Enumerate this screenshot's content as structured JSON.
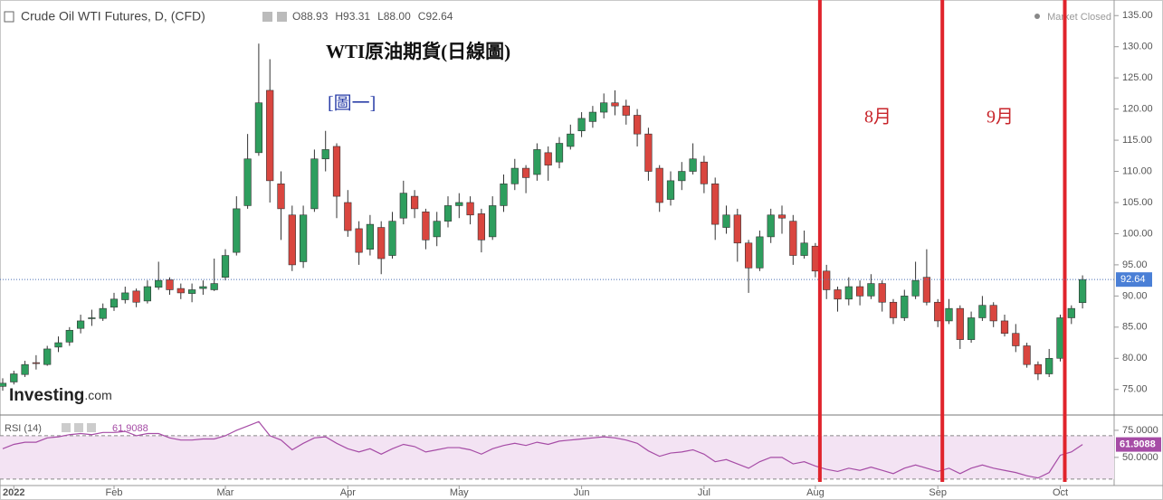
{
  "chart_data": {
    "type": "candlestick",
    "title": "Crude Oil WTI Futures, D, (CFD)",
    "header_values": [
      "O88.93",
      "H93.31",
      "L88.00",
      "C92.64"
    ],
    "status": "Market Closed",
    "logo_parts": [
      "Investing",
      ".com"
    ],
    "annotations": [
      {
        "text": "WTI原油期貨(日線圖)",
        "color": "#111111"
      },
      {
        "text": "[圖一]",
        "color": "#2b3fa8"
      },
      {
        "text": "8月",
        "color": "#c8252b"
      },
      {
        "text": "9月",
        "color": "#c8252b"
      }
    ],
    "up_color": "#2e9e5e",
    "down_color": "#d9463f",
    "ylim": [
      70.9,
      137.5
    ],
    "yticks": [
      {
        "value": 75,
        "label": "75.00"
      },
      {
        "value": 80,
        "label": "80.00"
      },
      {
        "value": 85,
        "label": "85.00"
      },
      {
        "value": 90,
        "label": "90.00"
      },
      {
        "value": 95,
        "label": "95.00"
      },
      {
        "value": 100,
        "label": "100.00"
      },
      {
        "value": 105,
        "label": "105.00"
      },
      {
        "value": 110,
        "label": "110.00"
      },
      {
        "value": 115,
        "label": "115.00"
      },
      {
        "value": 120,
        "label": "120.00"
      },
      {
        "value": 125,
        "label": "125.00"
      },
      {
        "value": 130,
        "label": "130.00"
      },
      {
        "value": 135,
        "label": "135.00"
      }
    ],
    "x_labels": [
      {
        "value": 1,
        "label": "2022"
      },
      {
        "value": 10,
        "label": "Feb"
      },
      {
        "value": 20,
        "label": "Mar"
      },
      {
        "value": 31,
        "label": "Apr"
      },
      {
        "value": 41,
        "label": "May"
      },
      {
        "value": 52,
        "label": "Jun"
      },
      {
        "value": 63,
        "label": "Jul"
      },
      {
        "value": 73,
        "label": "Aug"
      },
      {
        "value": 84,
        "label": "Sep"
      },
      {
        "value": 95,
        "label": "Oct"
      }
    ],
    "ohlc": [
      [
        75.5,
        76.8,
        74.8,
        76.0
      ],
      [
        76.2,
        78.0,
        75.8,
        77.5
      ],
      [
        77.4,
        79.6,
        77.0,
        79.0
      ],
      [
        79.3,
        80.5,
        78.2,
        79.2
      ],
      [
        79.0,
        82.0,
        78.8,
        81.5
      ],
      [
        81.8,
        83.5,
        81.0,
        82.5
      ],
      [
        82.6,
        85.0,
        82.0,
        84.5
      ],
      [
        84.8,
        87.0,
        84.0,
        86.0
      ],
      [
        86.5,
        87.8,
        85.2,
        86.5
      ],
      [
        86.4,
        88.8,
        86.0,
        88.0
      ],
      [
        88.2,
        90.5,
        87.6,
        89.5
      ],
      [
        89.4,
        91.5,
        88.8,
        90.5
      ],
      [
        90.8,
        91.2,
        88.2,
        89.0
      ],
      [
        89.2,
        92.5,
        88.8,
        91.5
      ],
      [
        91.4,
        95.5,
        91.0,
        92.5
      ],
      [
        92.6,
        93.0,
        90.2,
        91.0
      ],
      [
        91.2,
        92.0,
        89.5,
        90.5
      ],
      [
        90.4,
        92.0,
        89.0,
        91.0
      ],
      [
        91.2,
        92.5,
        90.2,
        91.5
      ],
      [
        91.0,
        96.0,
        90.8,
        92.0
      ],
      [
        93.0,
        97.5,
        92.5,
        96.5
      ],
      [
        97.0,
        106.0,
        96.5,
        104.0
      ],
      [
        104.5,
        116.0,
        104.0,
        112.0
      ],
      [
        113.0,
        130.5,
        112.5,
        121.0
      ],
      [
        123.0,
        128.0,
        105.0,
        108.5
      ],
      [
        108.0,
        110.0,
        99.0,
        104.0
      ],
      [
        103.0,
        104.5,
        94.0,
        95.0
      ],
      [
        95.5,
        104.5,
        94.5,
        103.0
      ],
      [
        104.0,
        113.5,
        103.5,
        112.0
      ],
      [
        112.0,
        116.5,
        110.0,
        113.5
      ],
      [
        114.0,
        114.5,
        102.5,
        106.0
      ],
      [
        105.0,
        107.0,
        99.5,
        100.5
      ],
      [
        100.8,
        102.0,
        95.0,
        97.0
      ],
      [
        97.5,
        103.0,
        96.5,
        101.5
      ],
      [
        101.0,
        102.0,
        93.5,
        96.0
      ],
      [
        96.5,
        103.5,
        96.0,
        102.0
      ],
      [
        102.5,
        108.5,
        101.5,
        106.5
      ],
      [
        106.0,
        107.0,
        102.5,
        104.0
      ],
      [
        103.5,
        104.0,
        97.5,
        99.0
      ],
      [
        99.5,
        103.5,
        98.0,
        102.0
      ],
      [
        102.0,
        106.0,
        101.0,
        104.5
      ],
      [
        104.5,
        106.5,
        102.5,
        105.0
      ],
      [
        105.0,
        106.0,
        101.5,
        103.0
      ],
      [
        103.2,
        104.0,
        97.0,
        99.0
      ],
      [
        99.5,
        106.0,
        99.0,
        104.5
      ],
      [
        104.5,
        109.5,
        103.5,
        108.0
      ],
      [
        108.0,
        112.0,
        107.0,
        110.5
      ],
      [
        110.5,
        111.0,
        106.5,
        109.0
      ],
      [
        109.5,
        114.5,
        108.5,
        113.5
      ],
      [
        113.0,
        114.0,
        108.5,
        111.0
      ],
      [
        111.5,
        115.5,
        110.5,
        114.5
      ],
      [
        114.0,
        117.5,
        113.5,
        116.0
      ],
      [
        116.5,
        119.5,
        115.5,
        118.5
      ],
      [
        118.0,
        120.5,
        117.0,
        119.5
      ],
      [
        119.5,
        122.5,
        118.5,
        121.0
      ],
      [
        121.0,
        123.0,
        119.0,
        120.5
      ],
      [
        120.5,
        121.5,
        117.5,
        119.0
      ],
      [
        119.0,
        120.0,
        114.0,
        116.0
      ],
      [
        116.0,
        117.0,
        108.5,
        110.0
      ],
      [
        110.5,
        111.0,
        103.5,
        105.0
      ],
      [
        105.5,
        110.0,
        104.5,
        108.5
      ],
      [
        108.5,
        111.5,
        107.0,
        110.0
      ],
      [
        110.0,
        114.5,
        109.5,
        112.0
      ],
      [
        111.5,
        112.5,
        106.5,
        108.0
      ],
      [
        108.0,
        109.0,
        99.0,
        101.5
      ],
      [
        101.0,
        104.5,
        100.0,
        103.0
      ],
      [
        103.0,
        104.0,
        95.5,
        98.5
      ],
      [
        98.5,
        99.0,
        90.5,
        94.5
      ],
      [
        94.5,
        100.5,
        94.0,
        99.5
      ],
      [
        99.5,
        104.0,
        98.5,
        103.0
      ],
      [
        103.0,
        104.5,
        100.0,
        102.5
      ],
      [
        102.0,
        103.0,
        95.0,
        96.5
      ],
      [
        96.5,
        100.5,
        96.0,
        98.5
      ],
      [
        98.0,
        98.5,
        93.0,
        94.0
      ],
      [
        94.0,
        95.0,
        89.5,
        91.0
      ],
      [
        91.0,
        91.5,
        87.5,
        89.5
      ],
      [
        89.5,
        93.0,
        88.5,
        91.5
      ],
      [
        91.5,
        92.5,
        88.5,
        90.0
      ],
      [
        90.0,
        93.5,
        89.5,
        92.0
      ],
      [
        92.0,
        92.5,
        87.5,
        89.0
      ],
      [
        89.0,
        89.5,
        85.5,
        86.5
      ],
      [
        86.5,
        91.0,
        86.0,
        90.0
      ],
      [
        90.0,
        95.5,
        89.5,
        92.5
      ],
      [
        93.0,
        97.5,
        88.5,
        89.0
      ],
      [
        89.0,
        89.5,
        85.0,
        86.0
      ],
      [
        86.0,
        89.5,
        85.5,
        88.0
      ],
      [
        88.0,
        88.5,
        81.5,
        83.0
      ],
      [
        83.0,
        87.5,
        82.5,
        86.5
      ],
      [
        86.5,
        90.0,
        86.0,
        88.5
      ],
      [
        88.5,
        89.0,
        85.0,
        86.0
      ],
      [
        86.0,
        87.0,
        83.5,
        84.0
      ],
      [
        84.0,
        85.5,
        81.0,
        82.0
      ],
      [
        82.0,
        82.5,
        78.5,
        79.0
      ],
      [
        79.0,
        79.5,
        76.5,
        77.5
      ],
      [
        77.5,
        81.5,
        77.0,
        80.0
      ],
      [
        80.0,
        87.0,
        79.5,
        86.5
      ],
      [
        86.5,
        88.5,
        85.5,
        88.0
      ],
      [
        88.93,
        93.31,
        88.0,
        92.64
      ]
    ],
    "rsi": {
      "name": "RSI (14)",
      "color": "#a64ca6",
      "band_color": "#f3e3f3",
      "current": 61.9088,
      "bands": [
        70,
        30
      ],
      "ylim": [
        24,
        88.3
      ],
      "yticks": [
        {
          "value": 75,
          "label": "75.0000"
        },
        {
          "value": 50,
          "label": "50.0000"
        }
      ],
      "values": [
        58,
        62,
        64,
        64,
        68,
        69,
        71,
        72,
        71,
        73,
        73,
        74,
        70,
        72,
        72,
        68,
        66,
        66,
        67,
        67,
        70,
        75,
        79,
        83,
        70,
        66,
        57,
        63,
        68,
        69,
        63,
        58,
        55,
        58,
        53,
        58,
        62,
        60,
        55,
        57,
        59,
        59,
        57,
        53,
        58,
        61,
        63,
        61,
        64,
        62,
        65,
        66,
        67,
        68,
        69,
        68,
        66,
        63,
        56,
        51,
        54,
        55,
        57,
        53,
        46,
        48,
        44,
        40,
        46,
        50,
        50,
        44,
        46,
        42,
        39,
        37,
        40,
        38,
        41,
        38,
        35,
        40,
        43,
        40,
        37,
        40,
        35,
        40,
        43,
        40,
        38,
        36,
        33,
        31,
        36,
        52,
        55,
        61.9088
      ]
    }
  }
}
